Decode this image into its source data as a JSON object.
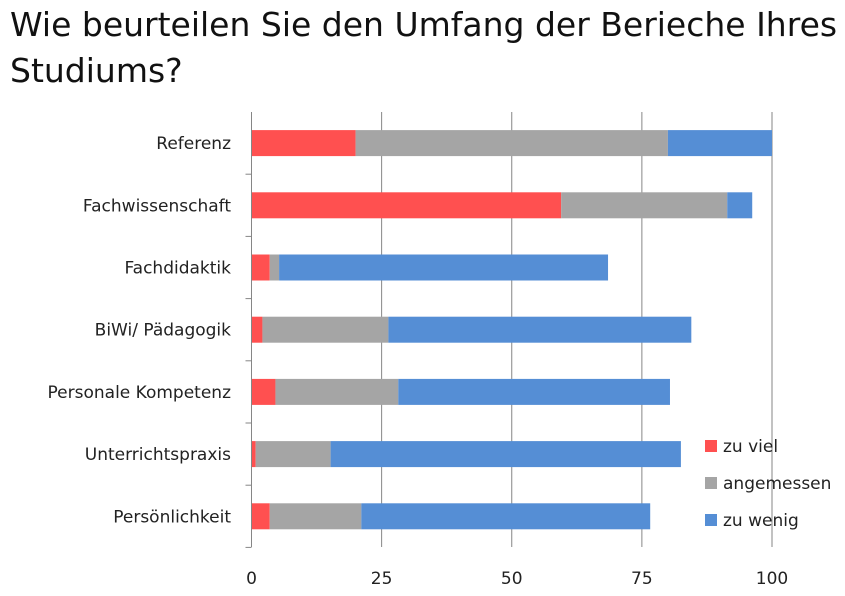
{
  "chart_data": {
    "type": "bar",
    "orientation": "horizontal",
    "stacked": true,
    "title": "Wie beurteilen Sie den Umfang der Berieche Ihres Studiums?",
    "categories": [
      "Referenz",
      "Fachwissenschaft",
      "Fachdidaktik",
      "BiWi/ Pädagogik",
      "Personale Kompetenz",
      "Unterrichtspraxis",
      "Persönlichkeit"
    ],
    "series": [
      {
        "name": "zu viel",
        "color": "#FF5050",
        "values": [
          20,
          59.5,
          3.5,
          2.1,
          4.6,
          0.8,
          3.5
        ]
      },
      {
        "name": "angemessen",
        "color": "#A5A5A5",
        "values": [
          60,
          31.9,
          1.8,
          24.2,
          23.6,
          14.4,
          17.6
        ]
      },
      {
        "name": "zu wenig",
        "color": "#558ED5",
        "values": [
          20,
          4.8,
          63.2,
          58.2,
          52.2,
          67.3,
          55.5
        ]
      }
    ],
    "xlim": [
      0,
      100
    ],
    "xticks": [
      0,
      25,
      50,
      75,
      100
    ],
    "grid": true,
    "legend": "right"
  }
}
